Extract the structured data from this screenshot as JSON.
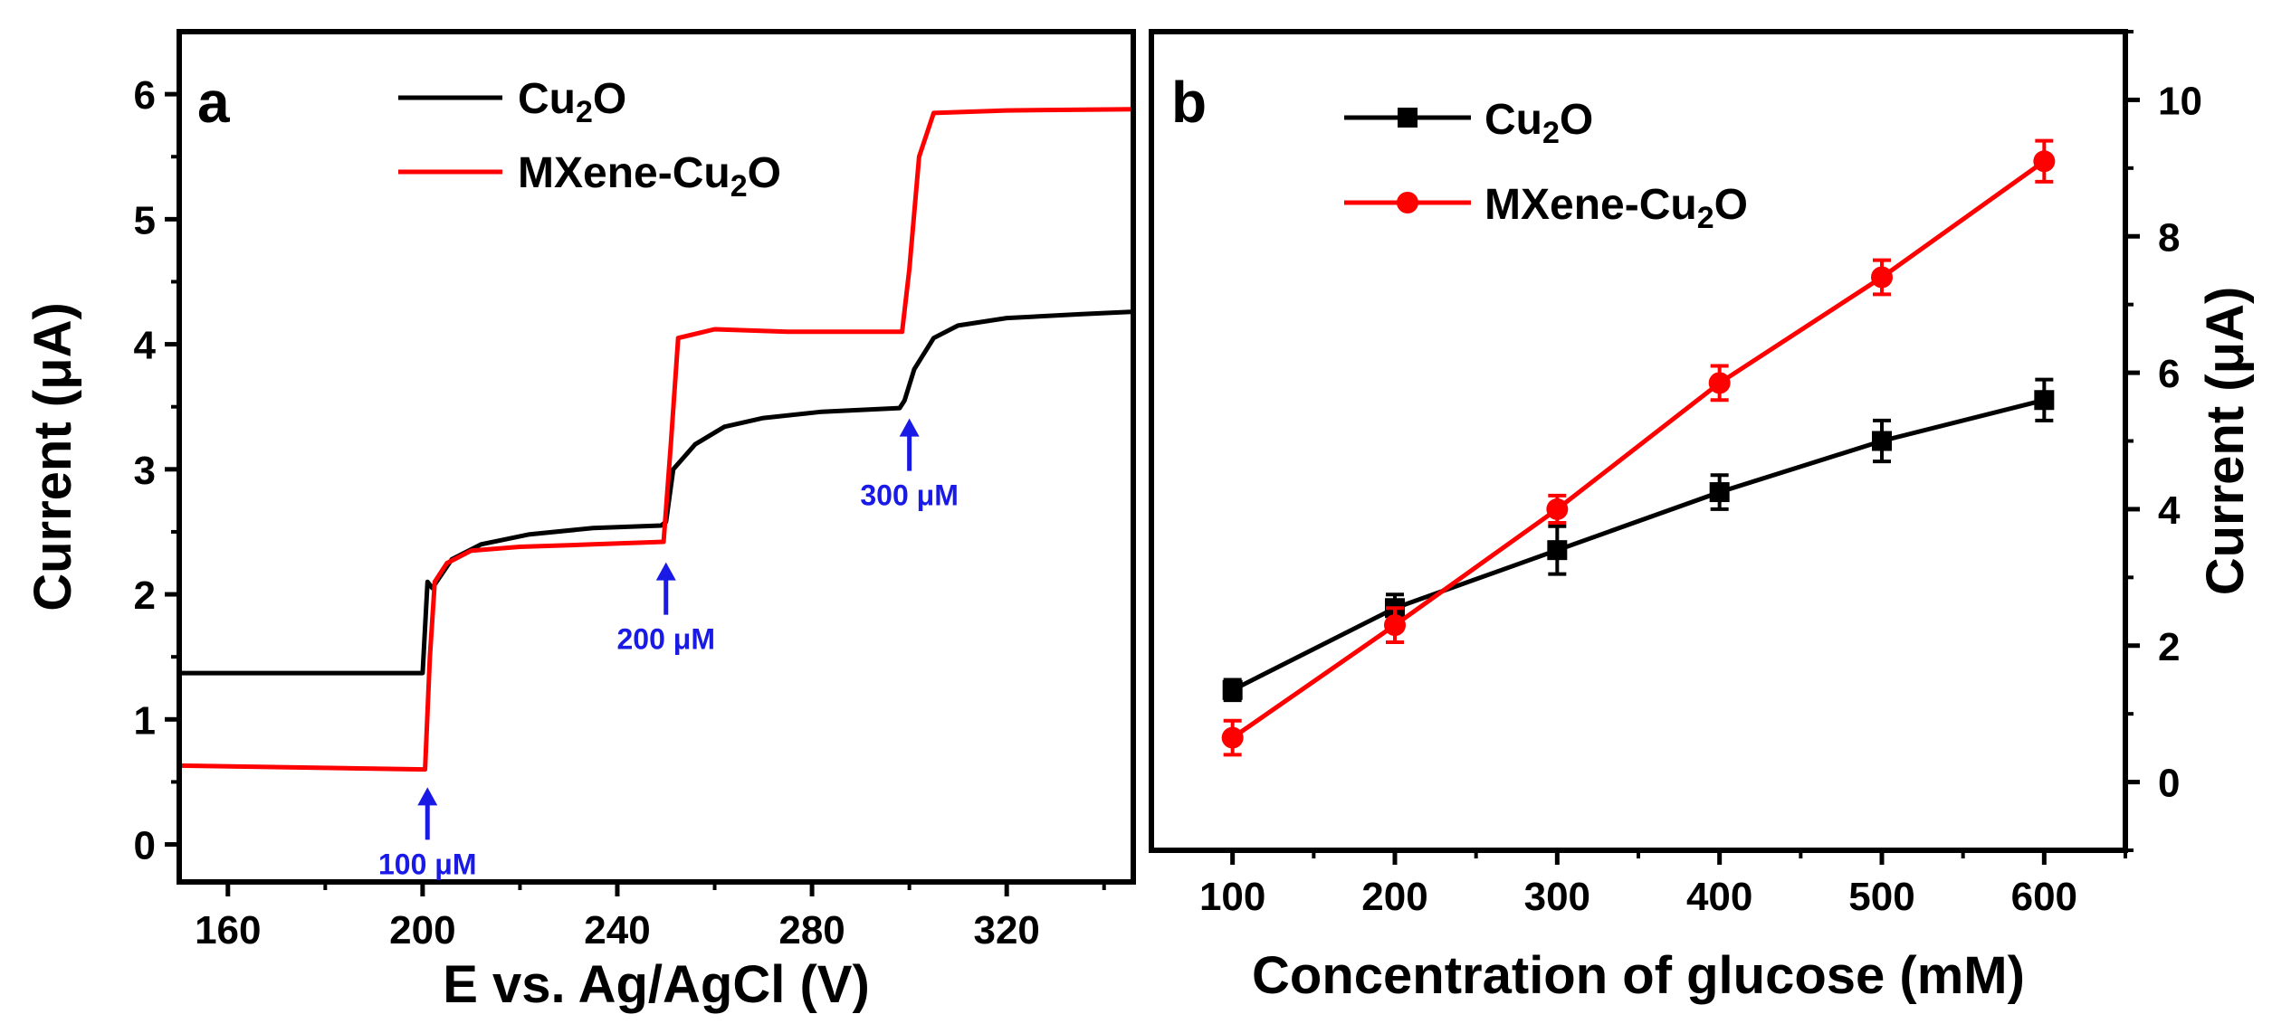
{
  "chart_data": [
    {
      "panel": "a",
      "type": "line",
      "xlabel": "E vs. Ag/AgCl (V)",
      "ylabel": "Current (μA)",
      "xlim": [
        150,
        346
      ],
      "ylim": [
        -0.3,
        6.5
      ],
      "xticks": [
        "160",
        "200",
        "240",
        "280",
        "320"
      ],
      "yticks": [
        "0",
        "1",
        "2",
        "3",
        "4",
        "5",
        "6"
      ],
      "legend": {
        "position": "top-center"
      },
      "series": [
        {
          "name": "Cu₂O",
          "label_base": "Cu",
          "label_sub": "2",
          "label_tail": "O",
          "color": "#000000",
          "points": [
            [
              150,
              1.37
            ],
            [
              200,
              1.37
            ],
            [
              201,
              2.1
            ],
            [
              202,
              2.05
            ],
            [
              206,
              2.28
            ],
            [
              212,
              2.4
            ],
            [
              222,
              2.48
            ],
            [
              235,
              2.53
            ],
            [
              249,
              2.55
            ],
            [
              250,
              2.58
            ],
            [
              251.5,
              3.0
            ],
            [
              256,
              3.2
            ],
            [
              262,
              3.34
            ],
            [
              270,
              3.41
            ],
            [
              282,
              3.46
            ],
            [
              298,
              3.49
            ],
            [
              299,
              3.55
            ],
            [
              301,
              3.8
            ],
            [
              305,
              4.05
            ],
            [
              310,
              4.15
            ],
            [
              320,
              4.21
            ],
            [
              335,
              4.24
            ],
            [
              346,
              4.26
            ]
          ]
        },
        {
          "name": "MXene-Cu₂O",
          "label_base": "MXene-Cu",
          "label_sub": "2",
          "label_tail": "O",
          "color": "#ff0000",
          "points": [
            [
              150,
              0.63
            ],
            [
              200.5,
              0.6
            ],
            [
              201.5,
              1.5
            ],
            [
              202.5,
              2.1
            ],
            [
              205,
              2.25
            ],
            [
              210,
              2.35
            ],
            [
              220,
              2.38
            ],
            [
              235,
              2.4
            ],
            [
              249.5,
              2.42
            ],
            [
              251,
              3.2
            ],
            [
              252.5,
              4.05
            ],
            [
              260,
              4.12
            ],
            [
              275,
              4.1
            ],
            [
              298.5,
              4.1
            ],
            [
              300,
              4.6
            ],
            [
              302,
              5.5
            ],
            [
              305,
              5.85
            ],
            [
              320,
              5.87
            ],
            [
              346,
              5.88
            ]
          ]
        }
      ],
      "annotations": [
        {
          "text": "100 μM",
          "x": 201,
          "arrow_tip_y": 0.5
        },
        {
          "text": "200 μM",
          "x": 250,
          "arrow_tip_y": 2.3
        },
        {
          "text": "300 μM",
          "x": 300,
          "arrow_tip_y": 3.45
        }
      ]
    },
    {
      "panel": "b",
      "type": "line",
      "xlabel": "Concentration of glucose (mM)",
      "ylabel": "Current (μA)",
      "y_axis_side": "right",
      "xlim": [
        50,
        650
      ],
      "ylim": [
        -1,
        11
      ],
      "xticks": [
        "100",
        "200",
        "300",
        "400",
        "500",
        "600"
      ],
      "yticks": [
        "0",
        "2",
        "4",
        "6",
        "8",
        "10"
      ],
      "legend": {
        "position": "top-left"
      },
      "series": [
        {
          "name": "Cu₂O",
          "label_base": "Cu",
          "label_sub": "2",
          "label_tail": "O",
          "color": "#000000",
          "marker": "square",
          "x": [
            100,
            200,
            300,
            400,
            500,
            600
          ],
          "y": [
            1.35,
            2.55,
            3.4,
            4.25,
            5.0,
            5.6
          ],
          "err": [
            0.15,
            0.2,
            0.35,
            0.25,
            0.3,
            0.3
          ]
        },
        {
          "name": "MXene-Cu₂O",
          "label_base": "MXene-Cu",
          "label_sub": "2",
          "label_tail": "O",
          "color": "#ff0000",
          "marker": "circle",
          "x": [
            100,
            200,
            300,
            400,
            500,
            600
          ],
          "y": [
            0.65,
            2.3,
            4.0,
            5.85,
            7.4,
            9.1
          ],
          "err": [
            0.25,
            0.25,
            0.2,
            0.25,
            0.25,
            0.3
          ]
        }
      ]
    }
  ]
}
